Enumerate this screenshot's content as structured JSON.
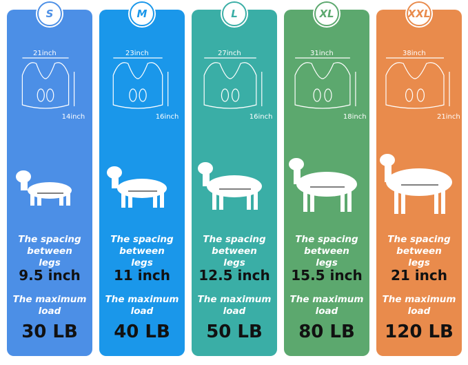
{
  "sizes": [
    {
      "label": "S",
      "width": "21inch",
      "height": "14inch",
      "spacing_label": "The spacing between legs",
      "spacing": "9.5 inch",
      "load_label": "The maximum load",
      "load": "30 LB"
    },
    {
      "label": "M",
      "width": "23inch",
      "height": "16inch",
      "spacing_label": "The spacing between legs",
      "spacing": "11 inch",
      "load_label": "The maximum load",
      "load": "40 LB"
    },
    {
      "label": "L",
      "width": "27inch",
      "height": "16inch",
      "spacing_label": "The spacing between legs",
      "spacing": "12.5 inch",
      "load_label": "The maximum load",
      "load": "50 LB"
    },
    {
      "label": "XL",
      "width": "31inch",
      "height": "18inch",
      "spacing_label": "The spacing between legs",
      "spacing": "15.5 inch",
      "load_label": "The maximum load",
      "load": "80 LB"
    },
    {
      "label": "XXL",
      "width": "38inch",
      "height": "21inch",
      "spacing_label": "The spacing between legs",
      "spacing": "21 inch",
      "load_label": "The maximum load",
      "load": "120 LB"
    }
  ]
}
